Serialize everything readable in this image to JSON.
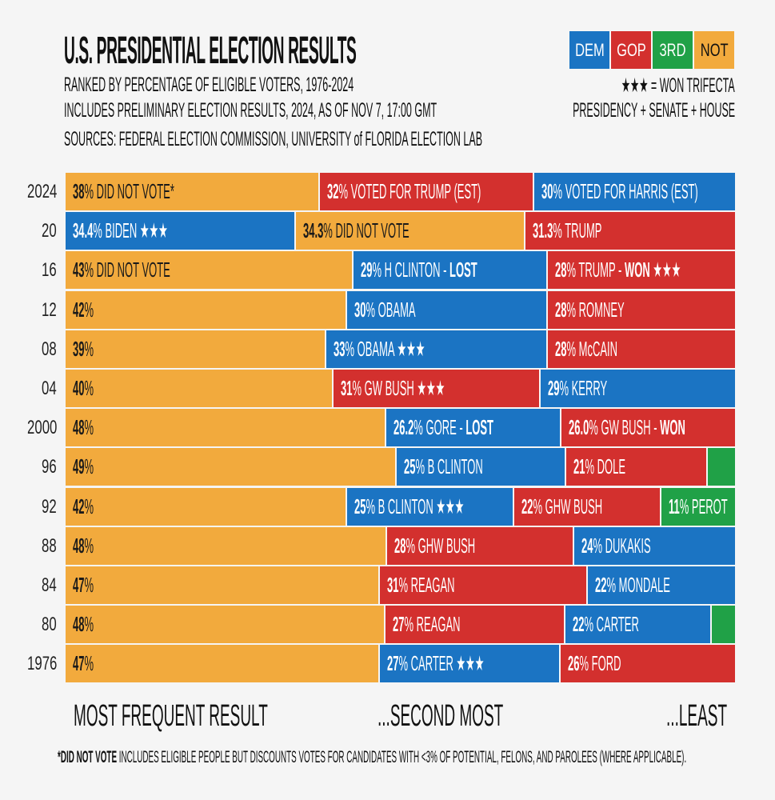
{
  "header": {
    "title": "U.S. PRESIDENTIAL ELECTION RESULTS",
    "subtitle1": "RANKED BY PERCENTAGE OF ELIGIBLE VOTERS, 1976-2024",
    "subtitle2": "INCLUDES PRELIMINARY ELECTION RESULTS, 2024, AS OF NOV 7, 17:00 GMT",
    "sources": "SOURCES: FEDERAL ELECTION COMMISSION, UNIVERSITY of FLORIDA ELECTION LAB"
  },
  "legend": {
    "items": [
      {
        "label": "DEM",
        "color": "#1b74c3"
      },
      {
        "label": "GOP",
        "color": "#d3302e"
      },
      {
        "label": "3RD",
        "color": "#20a147"
      },
      {
        "label": "NOT",
        "color": "#f2aa3d"
      }
    ],
    "trifecta_line1": "★★★ = WON TRIFECTA",
    "trifecta_line2": "PRESIDENCY + SENATE + HOUSE"
  },
  "chart_data": {
    "type": "bar",
    "stacked": true,
    "orientation": "horizontal",
    "unit": "% of eligible voters",
    "colors": {
      "DEM": "#1b74c3",
      "GOP": "#d3302e",
      "3RD": "#20a147",
      "NOT": "#f2aa3d"
    },
    "rows": [
      {
        "year": "2024",
        "segments": [
          {
            "party": "NOT",
            "value": 38,
            "num": "38",
            "text": " DID NOT VOTE*",
            "bold": "",
            "stars": ""
          },
          {
            "party": "GOP",
            "value": 32,
            "num": "32",
            "text": " VOTED FOR TRUMP (EST)",
            "bold": "",
            "stars": ""
          },
          {
            "party": "DEM",
            "value": 30,
            "num": "30",
            "text": " VOTED FOR HARRIS (EST)",
            "bold": "",
            "stars": ""
          }
        ]
      },
      {
        "year": "20",
        "segments": [
          {
            "party": "DEM",
            "value": 34.4,
            "num": "34.4",
            "text": " BIDEN ",
            "bold": "",
            "stars": "★★★"
          },
          {
            "party": "NOT",
            "value": 34.3,
            "num": "34.3",
            "text": " DID NOT VOTE",
            "bold": "",
            "stars": ""
          },
          {
            "party": "GOP",
            "value": 31.3,
            "num": "31.3",
            "text": " TRUMP",
            "bold": "",
            "stars": ""
          }
        ]
      },
      {
        "year": "16",
        "segments": [
          {
            "party": "NOT",
            "value": 43,
            "num": "43",
            "text": " DID NOT VOTE",
            "bold": "",
            "stars": ""
          },
          {
            "party": "DEM",
            "value": 29,
            "num": "29",
            "text": " H CLINTON - ",
            "bold": "LOST",
            "stars": ""
          },
          {
            "party": "GOP",
            "value": 28,
            "num": "28",
            "text": " TRUMP - ",
            "bold": "WON",
            "stars": " ★★★"
          }
        ]
      },
      {
        "year": "12",
        "segments": [
          {
            "party": "NOT",
            "value": 42,
            "num": "42",
            "text": "",
            "bold": "",
            "stars": ""
          },
          {
            "party": "DEM",
            "value": 30,
            "num": "30",
            "text": " OBAMA",
            "bold": "",
            "stars": ""
          },
          {
            "party": "GOP",
            "value": 28,
            "num": "28",
            "text": " ROMNEY",
            "bold": "",
            "stars": ""
          }
        ]
      },
      {
        "year": "08",
        "segments": [
          {
            "party": "NOT",
            "value": 39,
            "num": "39",
            "text": "",
            "bold": "",
            "stars": ""
          },
          {
            "party": "DEM",
            "value": 33,
            "num": "33",
            "text": " OBAMA ",
            "bold": "",
            "stars": "★★★"
          },
          {
            "party": "GOP",
            "value": 28,
            "num": "28",
            "text": " McCAIN",
            "bold": "",
            "stars": ""
          }
        ]
      },
      {
        "year": "04",
        "segments": [
          {
            "party": "NOT",
            "value": 40,
            "num": "40",
            "text": "",
            "bold": "",
            "stars": ""
          },
          {
            "party": "GOP",
            "value": 31,
            "num": "31",
            "text": " GW BUSH ",
            "bold": "",
            "stars": "★★★"
          },
          {
            "party": "DEM",
            "value": 29,
            "num": "29",
            "text": " KERRY",
            "bold": "",
            "stars": ""
          }
        ]
      },
      {
        "year": "2000",
        "segments": [
          {
            "party": "NOT",
            "value": 48,
            "num": "48",
            "text": "",
            "bold": "",
            "stars": ""
          },
          {
            "party": "DEM",
            "value": 26.2,
            "num": "26.2",
            "text": " GORE - ",
            "bold": "LOST",
            "stars": ""
          },
          {
            "party": "GOP",
            "value": 26.0,
            "num": "26.0",
            "text": " GW BUSH - ",
            "bold": "WON",
            "stars": ""
          }
        ]
      },
      {
        "year": "96",
        "segments": [
          {
            "party": "NOT",
            "value": 49,
            "num": "49",
            "text": "",
            "bold": "",
            "stars": ""
          },
          {
            "party": "DEM",
            "value": 25,
            "num": "25",
            "text": " B CLINTON",
            "bold": "",
            "stars": ""
          },
          {
            "party": "GOP",
            "value": 21,
            "num": "21",
            "text": " DOLE",
            "bold": "",
            "stars": ""
          },
          {
            "party": "3RD",
            "value": 4,
            "num": "",
            "text": "",
            "bold": "",
            "stars": ""
          }
        ]
      },
      {
        "year": "92",
        "segments": [
          {
            "party": "NOT",
            "value": 42,
            "num": "42",
            "text": "",
            "bold": "",
            "stars": ""
          },
          {
            "party": "DEM",
            "value": 25,
            "num": "25",
            "text": " B CLINTON ",
            "bold": "",
            "stars": "★★★"
          },
          {
            "party": "GOP",
            "value": 22,
            "num": "22",
            "text": " GHW BUSH",
            "bold": "",
            "stars": ""
          },
          {
            "party": "3RD",
            "value": 11,
            "num": "11",
            "text": " PEROT",
            "bold": "",
            "stars": ""
          }
        ]
      },
      {
        "year": "88",
        "segments": [
          {
            "party": "NOT",
            "value": 48,
            "num": "48",
            "text": "",
            "bold": "",
            "stars": ""
          },
          {
            "party": "GOP",
            "value": 28,
            "num": "28",
            "text": " GHW BUSH",
            "bold": "",
            "stars": ""
          },
          {
            "party": "DEM",
            "value": 24,
            "num": "24",
            "text": " DUKAKIS",
            "bold": "",
            "stars": ""
          }
        ]
      },
      {
        "year": "84",
        "segments": [
          {
            "party": "NOT",
            "value": 47,
            "num": "47",
            "text": "",
            "bold": "",
            "stars": ""
          },
          {
            "party": "GOP",
            "value": 31,
            "num": "31",
            "text": " REAGAN",
            "bold": "",
            "stars": ""
          },
          {
            "party": "DEM",
            "value": 22,
            "num": "22",
            "text": " MONDALE",
            "bold": "",
            "stars": ""
          }
        ]
      },
      {
        "year": "80",
        "segments": [
          {
            "party": "NOT",
            "value": 48,
            "num": "48",
            "text": "",
            "bold": "",
            "stars": ""
          },
          {
            "party": "GOP",
            "value": 27,
            "num": "27",
            "text": " REAGAN",
            "bold": "",
            "stars": ""
          },
          {
            "party": "DEM",
            "value": 22,
            "num": "22",
            "text": " CARTER",
            "bold": "",
            "stars": ""
          },
          {
            "party": "3RD",
            "value": 3.5,
            "num": "",
            "text": "",
            "bold": "",
            "stars": ""
          }
        ]
      },
      {
        "year": "1976",
        "segments": [
          {
            "party": "NOT",
            "value": 47,
            "num": "47",
            "text": "",
            "bold": "",
            "stars": ""
          },
          {
            "party": "DEM",
            "value": 27,
            "num": "27",
            "text": " CARTER ",
            "bold": "",
            "stars": "★★★"
          },
          {
            "party": "GOP",
            "value": 26,
            "num": "26",
            "text": " FORD",
            "bold": "",
            "stars": ""
          }
        ]
      }
    ]
  },
  "bottom_labels": {
    "first": "MOST FREQUENT RESULT",
    "second": "...SECOND MOST",
    "least": "...LEAST"
  },
  "footnote": {
    "bold": "*DID NOT VOTE",
    "text": " INCLUDES ELIGIBLE PEOPLE BUT DISCOUNTS VOTES FOR CANDIDATES WITH <3% OF POTENTIAL, FELONS, AND PAROLEES (WHERE APPLICABLE)."
  }
}
